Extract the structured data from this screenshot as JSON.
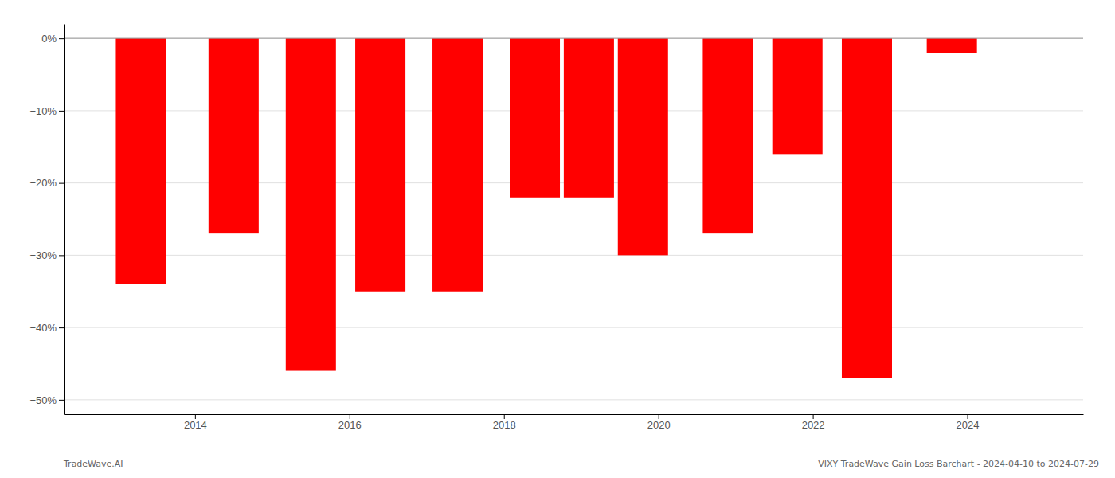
{
  "chart_data": {
    "type": "bar",
    "x": [
      2013.3,
      2014.5,
      2015.5,
      2016.4,
      2017.4,
      2018.4,
      2019.1,
      2019.8,
      2020.9,
      2021.8,
      2022.7,
      2023.8
    ],
    "values": [
      -34,
      -27,
      -46,
      -35,
      -35,
      -22,
      -22,
      -30,
      -27,
      -16,
      -47,
      -2
    ],
    "color": "#FF0000",
    "xlim": [
      2012.3,
      2025.5
    ],
    "xticks": [
      2014,
      2016,
      2018,
      2020,
      2022,
      2024
    ],
    "ylim": [
      -52,
      2
    ],
    "yticks": [
      {
        "value": 0,
        "label": "0%"
      },
      {
        "value": -10,
        "label": "−10%"
      },
      {
        "value": -20,
        "label": "−20%"
      },
      {
        "value": -30,
        "label": "−30%"
      },
      {
        "value": -40,
        "label": "−40%"
      },
      {
        "value": -50,
        "label": "−50%"
      }
    ],
    "grid": true,
    "annotations": [
      "TradeWave.AI",
      "VIXY TradeWave Gain Loss Barchart - 2024-04-10 to 2024-07-29"
    ]
  }
}
